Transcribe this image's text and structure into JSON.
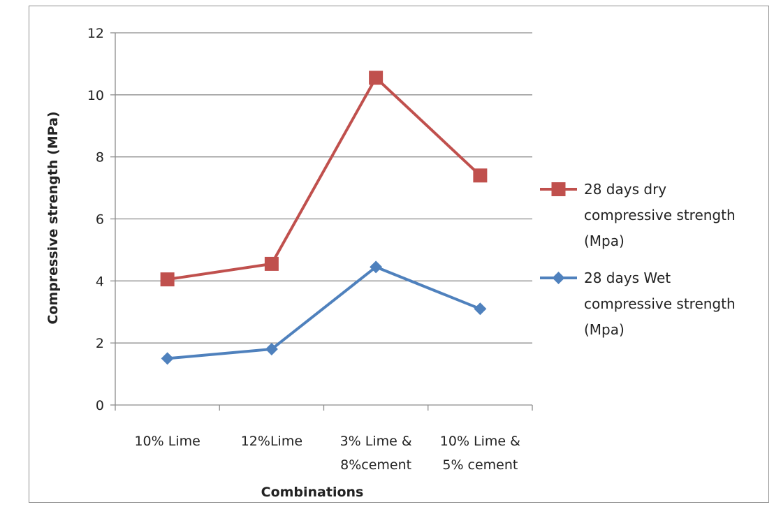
{
  "chart_data": {
    "type": "line",
    "title": "",
    "xlabel": "Combinations",
    "ylabel": "Compressive strength (MPa)",
    "ylim": [
      0,
      12
    ],
    "yticks": [
      "0",
      "2",
      "4",
      "6",
      "8",
      "10",
      "12"
    ],
    "categories": [
      [
        "10% Lime"
      ],
      [
        "12%Lime"
      ],
      [
        "3% Lime &",
        "8%cement"
      ],
      [
        "10% Lime &",
        "5% cement"
      ]
    ],
    "grid": "horizontal",
    "legend_position": "right",
    "series": [
      {
        "name": [
          "28 days dry",
          "compressive strength",
          "(Mpa)"
        ],
        "values": [
          4.05,
          4.55,
          10.55,
          7.4
        ],
        "color": "#c0504d",
        "marker": "square"
      },
      {
        "name": [
          "28 days Wet",
          "compressive strength",
          "(Mpa)"
        ],
        "values": [
          1.5,
          1.8,
          4.45,
          3.1
        ],
        "color": "#4f81bd",
        "marker": "diamond"
      }
    ]
  }
}
